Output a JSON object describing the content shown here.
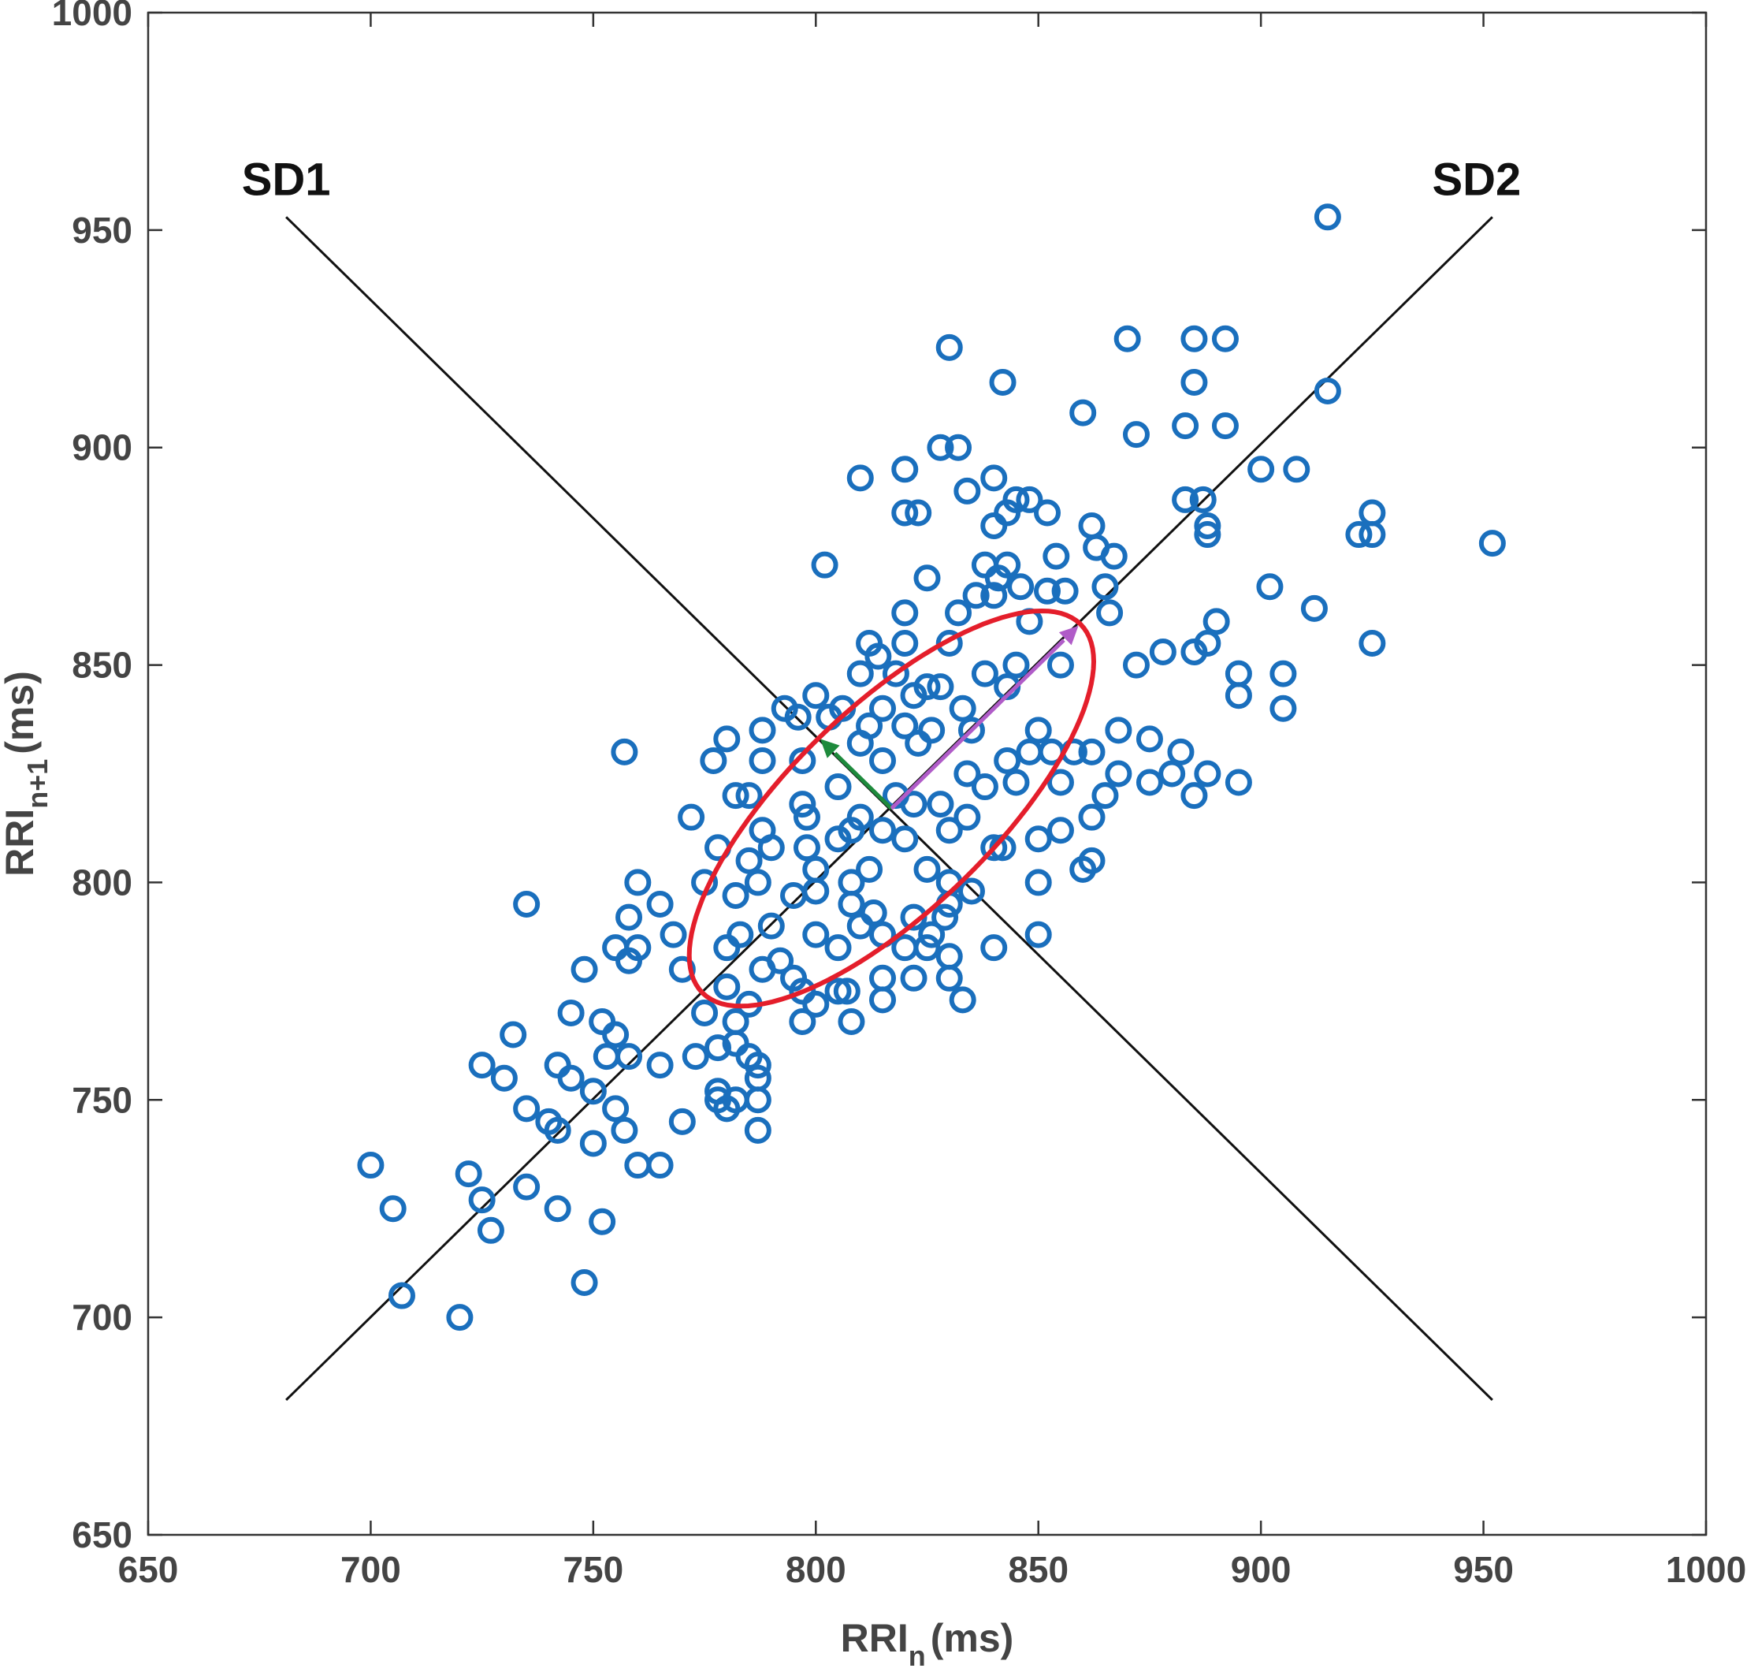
{
  "chart_data": {
    "type": "scatter",
    "xlabel": {
      "main": "RRI",
      "sub": "n",
      "unit": "(ms)"
    },
    "ylabel": {
      "main": "RRI",
      "sub": "n+1",
      "unit": "(ms)"
    },
    "xlim": [
      650,
      1000
    ],
    "ylim": [
      650,
      1000
    ],
    "xticks": [
      "650",
      "700",
      "750",
      "800",
      "850",
      "900",
      "950",
      "1000"
    ],
    "yticks": [
      "650",
      "700",
      "750",
      "800",
      "850",
      "900",
      "950",
      "1000"
    ],
    "grid": false,
    "colors": {
      "points": "#1a6fbd",
      "ellipse": "#e41e2b",
      "sd1_arrow": "#1e8a3c",
      "sd2_arrow": "#b05cc8",
      "lines": "#111111",
      "axes": "#333333"
    },
    "lines": [
      {
        "label": "SD1",
        "from": [
          681,
          953
        ],
        "to": [
          952,
          681
        ]
      },
      {
        "label": "SD2",
        "from": [
          681,
          681
        ],
        "to": [
          952,
          953
        ]
      }
    ],
    "ellipse": {
      "center": [
        817,
        817
      ],
      "sd2": 60,
      "sd1": 23,
      "angle_deg": 45
    },
    "arrows": [
      {
        "name": "SD1",
        "from": [
          817,
          817
        ],
        "to": [
          801,
          833
        ]
      },
      {
        "name": "SD2",
        "from": [
          817,
          817
        ],
        "to": [
          859,
          859
        ]
      }
    ],
    "points": [
      [
        915,
        953
      ],
      [
        830,
        923
      ],
      [
        870,
        925
      ],
      [
        885,
        925
      ],
      [
        892,
        925
      ],
      [
        842,
        915
      ],
      [
        885,
        915
      ],
      [
        915,
        913
      ],
      [
        860,
        908
      ],
      [
        872,
        903
      ],
      [
        883,
        905
      ],
      [
        892,
        905
      ],
      [
        828,
        900
      ],
      [
        832,
        900
      ],
      [
        810,
        893
      ],
      [
        840,
        893
      ],
      [
        820,
        895
      ],
      [
        900,
        895
      ],
      [
        908,
        895
      ],
      [
        834,
        890
      ],
      [
        845,
        888
      ],
      [
        848,
        888
      ],
      [
        883,
        888
      ],
      [
        887,
        888
      ],
      [
        820,
        885
      ],
      [
        823,
        885
      ],
      [
        843,
        885
      ],
      [
        852,
        885
      ],
      [
        925,
        885
      ],
      [
        840,
        882
      ],
      [
        862,
        882
      ],
      [
        888,
        882
      ],
      [
        922,
        880
      ],
      [
        925,
        880
      ],
      [
        888,
        880
      ],
      [
        952,
        878
      ],
      [
        863,
        877
      ],
      [
        854,
        875
      ],
      [
        867,
        875
      ],
      [
        802,
        873
      ],
      [
        838,
        873
      ],
      [
        843,
        873
      ],
      [
        825,
        870
      ],
      [
        841,
        870
      ],
      [
        852,
        867
      ],
      [
        856,
        867
      ],
      [
        846,
        868
      ],
      [
        865,
        868
      ],
      [
        902,
        868
      ],
      [
        836,
        866
      ],
      [
        840,
        866
      ],
      [
        832,
        862
      ],
      [
        820,
        862
      ],
      [
        866,
        862
      ],
      [
        912,
        863
      ],
      [
        890,
        860
      ],
      [
        848,
        860
      ],
      [
        888,
        855
      ],
      [
        925,
        855
      ],
      [
        812,
        855
      ],
      [
        820,
        855
      ],
      [
        830,
        855
      ],
      [
        814,
        852
      ],
      [
        878,
        853
      ],
      [
        885,
        853
      ],
      [
        872,
        850
      ],
      [
        855,
        850
      ],
      [
        845,
        850
      ],
      [
        838,
        848
      ],
      [
        810,
        848
      ],
      [
        818,
        848
      ],
      [
        895,
        848
      ],
      [
        905,
        848
      ],
      [
        828,
        845
      ],
      [
        843,
        845
      ],
      [
        800,
        843
      ],
      [
        822,
        843
      ],
      [
        825,
        845
      ],
      [
        895,
        843
      ],
      [
        793,
        840
      ],
      [
        806,
        840
      ],
      [
        815,
        840
      ],
      [
        833,
        840
      ],
      [
        905,
        840
      ],
      [
        796,
        838
      ],
      [
        803,
        838
      ],
      [
        812,
        836
      ],
      [
        820,
        836
      ],
      [
        788,
        835
      ],
      [
        868,
        835
      ],
      [
        850,
        835
      ],
      [
        826,
        835
      ],
      [
        835,
        835
      ],
      [
        780,
        833
      ],
      [
        810,
        832
      ],
      [
        823,
        832
      ],
      [
        848,
        830
      ],
      [
        853,
        830
      ],
      [
        858,
        830
      ],
      [
        875,
        833
      ],
      [
        882,
        830
      ],
      [
        862,
        830
      ],
      [
        757,
        830
      ],
      [
        777,
        828
      ],
      [
        788,
        828
      ],
      [
        797,
        828
      ],
      [
        815,
        828
      ],
      [
        843,
        828
      ],
      [
        880,
        825
      ],
      [
        888,
        825
      ],
      [
        834,
        825
      ],
      [
        845,
        823
      ],
      [
        855,
        823
      ],
      [
        868,
        825
      ],
      [
        875,
        823
      ],
      [
        885,
        820
      ],
      [
        895,
        823
      ],
      [
        805,
        822
      ],
      [
        818,
        820
      ],
      [
        838,
        822
      ],
      [
        865,
        820
      ],
      [
        782,
        820
      ],
      [
        785,
        820
      ],
      [
        797,
        818
      ],
      [
        822,
        818
      ],
      [
        828,
        818
      ],
      [
        834,
        815
      ],
      [
        810,
        815
      ],
      [
        772,
        815
      ],
      [
        798,
        815
      ],
      [
        862,
        815
      ],
      [
        788,
        812
      ],
      [
        808,
        812
      ],
      [
        815,
        812
      ],
      [
        830,
        812
      ],
      [
        805,
        810
      ],
      [
        850,
        810
      ],
      [
        855,
        812
      ],
      [
        820,
        810
      ],
      [
        790,
        808
      ],
      [
        798,
        808
      ],
      [
        778,
        808
      ],
      [
        842,
        808
      ],
      [
        840,
        808
      ],
      [
        862,
        805
      ],
      [
        785,
        805
      ],
      [
        800,
        803
      ],
      [
        808,
        800
      ],
      [
        825,
        803
      ],
      [
        860,
        803
      ],
      [
        812,
        803
      ],
      [
        830,
        800
      ],
      [
        850,
        800
      ],
      [
        775,
        800
      ],
      [
        760,
        800
      ],
      [
        787,
        800
      ],
      [
        800,
        798
      ],
      [
        835,
        798
      ],
      [
        782,
        797
      ],
      [
        795,
        797
      ],
      [
        808,
        795
      ],
      [
        813,
        793
      ],
      [
        765,
        795
      ],
      [
        735,
        795
      ],
      [
        830,
        795
      ],
      [
        758,
        792
      ],
      [
        822,
        792
      ],
      [
        829,
        792
      ],
      [
        810,
        790
      ],
      [
        790,
        790
      ],
      [
        783,
        788
      ],
      [
        800,
        788
      ],
      [
        826,
        788
      ],
      [
        850,
        788
      ],
      [
        768,
        788
      ],
      [
        780,
        785
      ],
      [
        760,
        785
      ],
      [
        755,
        785
      ],
      [
        805,
        785
      ],
      [
        820,
        785
      ],
      [
        840,
        785
      ],
      [
        825,
        785
      ],
      [
        815,
        788
      ],
      [
        792,
        782
      ],
      [
        758,
        782
      ],
      [
        770,
        780
      ],
      [
        788,
        780
      ],
      [
        795,
        778
      ],
      [
        815,
        778
      ],
      [
        822,
        778
      ],
      [
        830,
        778
      ],
      [
        830,
        783
      ],
      [
        748,
        780
      ],
      [
        780,
        776
      ],
      [
        807,
        775
      ],
      [
        805,
        775
      ],
      [
        797,
        775
      ],
      [
        815,
        773
      ],
      [
        833,
        773
      ],
      [
        800,
        772
      ],
      [
        785,
        772
      ],
      [
        745,
        770
      ],
      [
        775,
        770
      ],
      [
        782,
        768
      ],
      [
        797,
        768
      ],
      [
        808,
        768
      ],
      [
        752,
        768
      ],
      [
        755,
        765
      ],
      [
        732,
        765
      ],
      [
        782,
        763
      ],
      [
        778,
        762
      ],
      [
        773,
        760
      ],
      [
        753,
        760
      ],
      [
        758,
        760
      ],
      [
        785,
        760
      ],
      [
        787,
        758
      ],
      [
        725,
        758
      ],
      [
        742,
        758
      ],
      [
        765,
        758
      ],
      [
        787,
        755
      ],
      [
        745,
        755
      ],
      [
        730,
        755
      ],
      [
        778,
        752
      ],
      [
        750,
        752
      ],
      [
        782,
        750
      ],
      [
        778,
        750
      ],
      [
        787,
        750
      ],
      [
        735,
        748
      ],
      [
        755,
        748
      ],
      [
        780,
        748
      ],
      [
        740,
        745
      ],
      [
        770,
        745
      ],
      [
        742,
        743
      ],
      [
        757,
        743
      ],
      [
        787,
        743
      ],
      [
        750,
        740
      ],
      [
        760,
        735
      ],
      [
        765,
        735
      ],
      [
        700,
        735
      ],
      [
        722,
        733
      ],
      [
        735,
        730
      ],
      [
        725,
        727
      ],
      [
        705,
        725
      ],
      [
        742,
        725
      ],
      [
        752,
        722
      ],
      [
        727,
        720
      ],
      [
        748,
        708
      ],
      [
        707,
        705
      ],
      [
        720,
        700
      ]
    ]
  }
}
